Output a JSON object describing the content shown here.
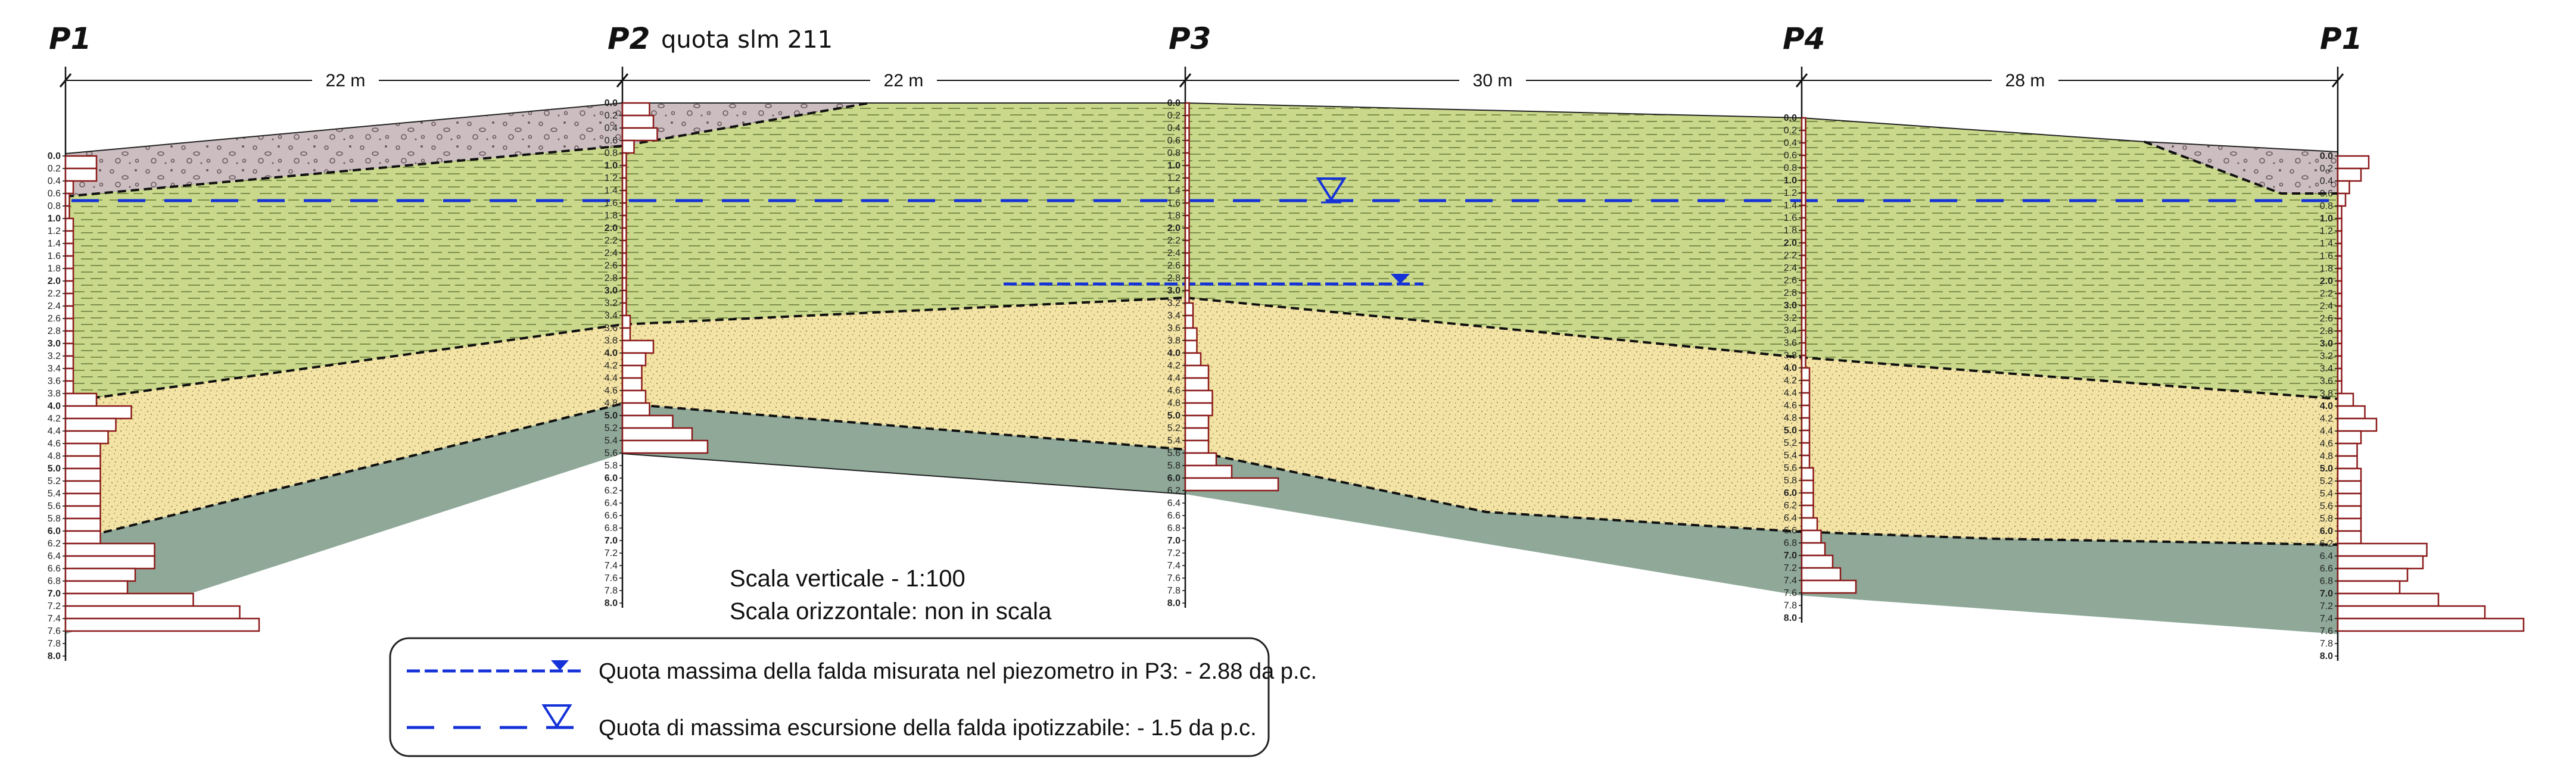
{
  "colors": {
    "fill_layer": "#cbbdc0",
    "clay_layer": "#c9d88a",
    "sand_layer": "#f3e3a4",
    "gravel_layer": "#8fa898",
    "water": "#1432d8",
    "bars": "#8b1a1a"
  },
  "header": {
    "quota": "quota slm 211"
  },
  "boreholes": [
    {
      "id": "P1",
      "label": "P1",
      "depth_max": 8.0
    },
    {
      "id": "P2",
      "label": "P2",
      "depth_max": 8.0
    },
    {
      "id": "P3",
      "label": "P3",
      "depth_max": 8.0
    },
    {
      "id": "P4",
      "label": "P4",
      "depth_max": 8.0
    },
    {
      "id": "P1b",
      "label": "P1",
      "depth_max": 8.0
    }
  ],
  "distances": [
    "22 m",
    "22 m",
    "30 m",
    "28 m"
  ],
  "depth_ticks": [
    "0.0",
    "0.2",
    "0.4",
    "0.6",
    "0.8",
    "1.0",
    "1.2",
    "1.4",
    "1.6",
    "1.8",
    "2.0",
    "2.2",
    "2.4",
    "2.6",
    "2.8",
    "3.0",
    "3.2",
    "3.4",
    "3.6",
    "3.8",
    "4.0",
    "4.2",
    "4.4",
    "4.6",
    "4.8",
    "5.0",
    "5.2",
    "5.4",
    "5.6",
    "5.8",
    "6.0",
    "6.2",
    "6.4",
    "6.6",
    "6.8",
    "7.0",
    "7.2",
    "7.4",
    "7.6",
    "7.8",
    "8.0"
  ],
  "penetration_logs": {
    "P1": [
      8,
      8,
      2,
      1,
      1,
      2,
      2,
      2,
      2,
      2,
      2,
      2,
      2,
      2,
      2,
      2,
      2,
      2,
      2,
      8,
      17,
      13,
      11,
      9,
      9,
      9,
      9,
      9,
      9,
      9,
      9,
      23,
      23,
      18,
      16,
      33,
      45,
      50,
      0,
      0,
      0
    ],
    "P2": [
      7,
      8,
      9,
      3,
      1,
      1,
      1,
      1,
      1,
      1,
      1,
      1,
      1,
      1,
      1,
      1,
      1,
      2,
      2,
      8,
      6,
      5,
      5,
      6,
      7,
      13,
      18,
      22,
      0,
      0,
      0,
      0,
      0,
      0,
      0,
      0,
      0,
      0,
      0,
      0,
      0
    ],
    "P3": [
      1,
      1,
      1,
      1,
      1,
      1,
      1,
      1,
      1,
      1,
      1,
      1,
      1,
      1,
      1,
      1,
      2,
      2,
      3,
      3,
      4,
      6,
      6,
      7,
      7,
      6,
      6,
      6,
      8,
      12,
      24,
      0,
      0,
      0,
      0,
      0,
      0,
      0,
      0,
      0,
      0
    ],
    "P4": [
      1,
      1,
      1,
      1,
      1,
      1,
      1,
      1,
      1,
      1,
      1,
      1,
      1,
      1,
      1,
      1,
      1,
      1,
      1,
      1,
      2,
      2,
      2,
      2,
      2,
      2,
      2,
      2,
      3,
      3,
      3,
      3,
      4,
      5,
      6,
      8,
      10,
      14,
      0,
      0,
      0
    ],
    "P1b": [
      8,
      6,
      3,
      2,
      1,
      1,
      1,
      1,
      1,
      1,
      1,
      1,
      1,
      1,
      1,
      1,
      1,
      1,
      1,
      4,
      7,
      10,
      6,
      5,
      5,
      6,
      6,
      6,
      6,
      6,
      6,
      23,
      22,
      18,
      16,
      26,
      38,
      48,
      0,
      0,
      0
    ]
  },
  "scale": {
    "vertical": "Scala verticale - 1:100",
    "horizontal": "Scala orizzontale: non in scala"
  },
  "legend": {
    "measured": "Quota massima della falda misurata nel piezometro in P3: - 2.88 da p.c.",
    "hypothesized": "Quota di massima escursione della falda ipotizzabile: - 1.5 da p.c."
  }
}
